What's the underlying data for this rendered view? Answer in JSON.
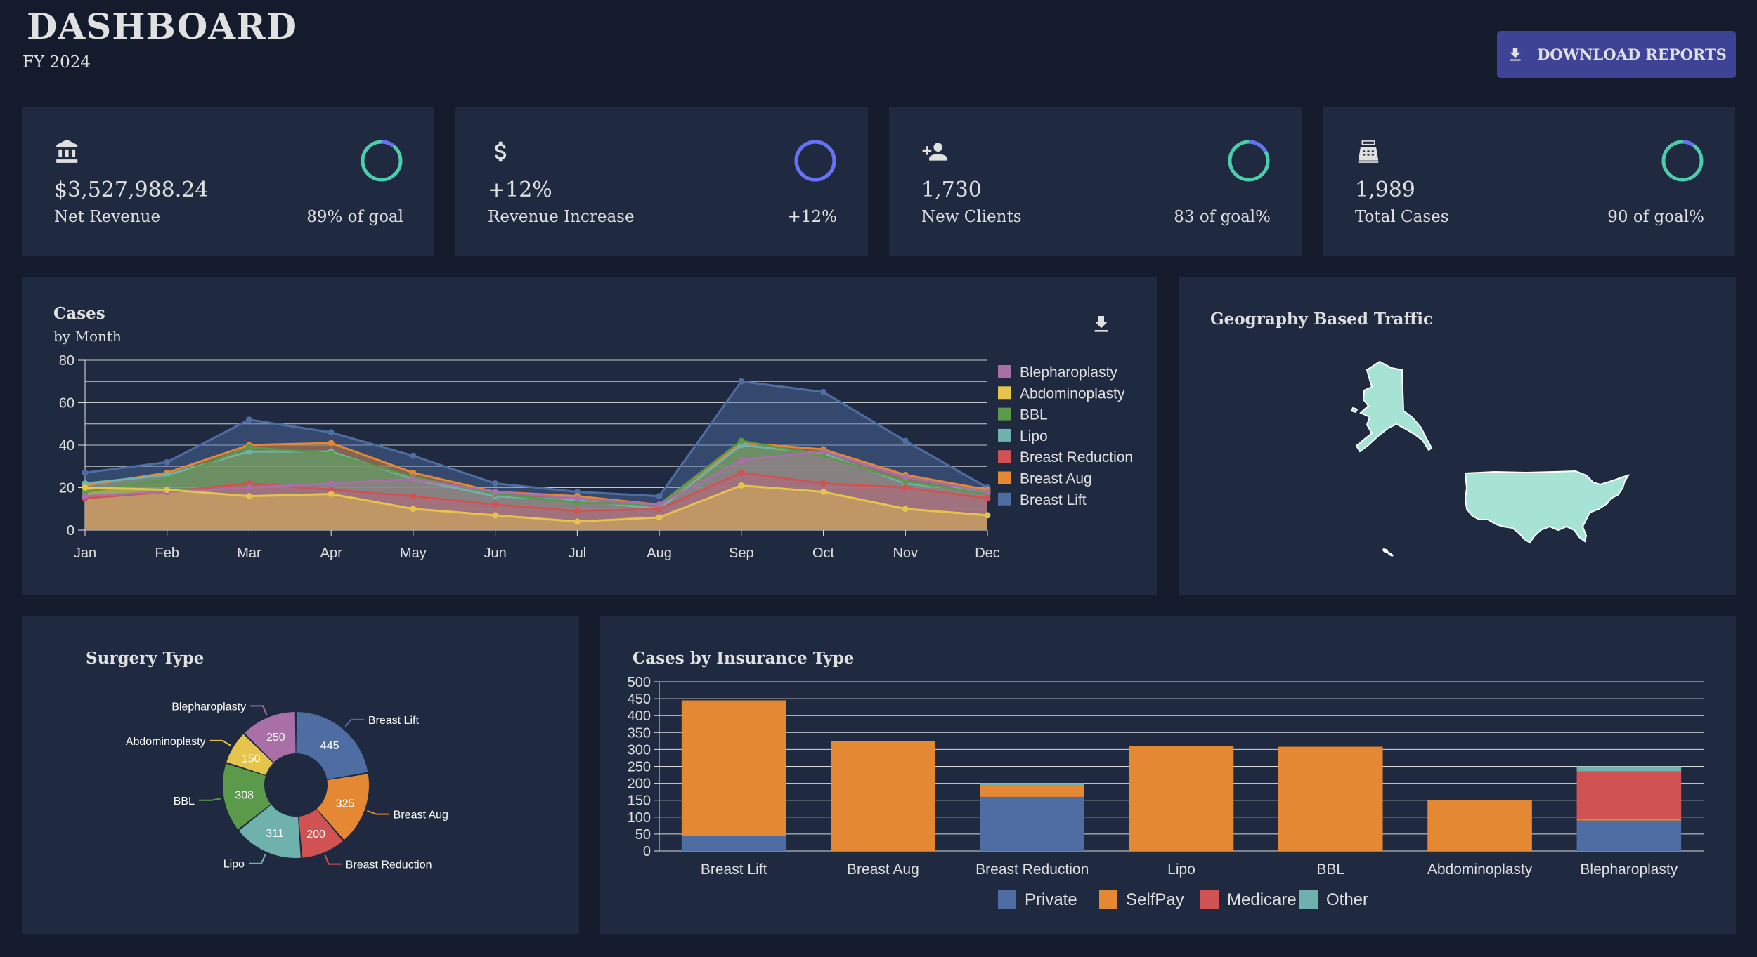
{
  "header": {
    "title": "DASHBOARD",
    "subtitle": "FY 2024",
    "download_label": "DOWNLOAD REPORTS"
  },
  "colors": {
    "background": "#141b2d",
    "panel": "#1f2a40",
    "accent_button": "#3e4396",
    "ring_green": "#4cceac",
    "ring_blue": "#6870fa"
  },
  "stats": [
    {
      "icon": "bank-icon",
      "value": "$3,527,988.24",
      "label": "Net Revenue",
      "pct_text": "89% of goal",
      "progress": 0.11
    },
    {
      "icon": "dollar-icon",
      "value": "+12%",
      "label": "Revenue Increase",
      "pct_text": "+12%",
      "progress": 1.0
    },
    {
      "icon": "add-person-icon",
      "value": "1,730",
      "label": "New Clients",
      "pct_text": "83 of goal%",
      "progress": 0.17
    },
    {
      "icon": "cash-register-icon",
      "value": "1,989",
      "label": "Total Cases",
      "pct_text": "90 of goal%",
      "progress": 0.1
    }
  ],
  "cases_panel": {
    "title": "Cases",
    "subtitle": "by Month"
  },
  "geo_panel": {
    "title": "Geography Based Traffic",
    "map_color": "#a6e3d5"
  },
  "surgery_panel": {
    "title": "Surgery Type"
  },
  "insurance_panel": {
    "title": "Cases by Insurance Type"
  },
  "chart_data": [
    {
      "type": "area",
      "title": "Cases",
      "subtitle": "by Month",
      "x": [
        "Jan",
        "Feb",
        "Mar",
        "Apr",
        "May",
        "Jun",
        "Jul",
        "Aug",
        "Sep",
        "Oct",
        "Nov",
        "Dec"
      ],
      "ylim": [
        0,
        80
      ],
      "yticks": [
        0,
        20,
        40,
        60,
        80
      ],
      "grid": true,
      "legend_position": "right",
      "series": [
        {
          "name": "Blepharoplasty",
          "color": "#a870a6",
          "values": [
            16,
            18,
            20,
            22,
            24,
            18,
            15,
            12,
            33,
            37,
            25,
            18
          ]
        },
        {
          "name": "Abdominoplasty",
          "color": "#e4c44a",
          "values": [
            20,
            19,
            16,
            17,
            10,
            7,
            4,
            6,
            21,
            18,
            10,
            7
          ]
        },
        {
          "name": "BBL",
          "color": "#5b9a4a",
          "values": [
            18,
            24,
            39,
            36,
            25,
            17,
            13,
            12,
            42,
            35,
            23,
            17
          ]
        },
        {
          "name": "Lipo",
          "color": "#6fb2ad",
          "values": [
            22,
            26,
            37,
            37,
            24,
            16,
            14,
            10,
            40,
            36,
            22,
            18
          ]
        },
        {
          "name": "Breast Reduction",
          "color": "#d05252",
          "values": [
            15,
            18,
            22,
            19,
            16,
            12,
            9,
            10,
            27,
            22,
            20,
            15
          ]
        },
        {
          "name": "Breast Aug",
          "color": "#e48833",
          "values": [
            21,
            27,
            40,
            41,
            27,
            18,
            16,
            12,
            41,
            38,
            26,
            19
          ]
        },
        {
          "name": "Breast Lift",
          "color": "#4e6ea3",
          "values": [
            27,
            32,
            52,
            46,
            35,
            22,
            18,
            16,
            70,
            65,
            42,
            20
          ]
        }
      ]
    },
    {
      "type": "pie",
      "title": "Surgery Type",
      "donut": true,
      "slices": [
        {
          "label": "Breast Lift",
          "value": 445,
          "color": "#4e6ea3"
        },
        {
          "label": "Breast Aug",
          "value": 325,
          "color": "#e48833"
        },
        {
          "label": "Breast Reduction",
          "value": 200,
          "color": "#d05252"
        },
        {
          "label": "Lipo",
          "value": 311,
          "color": "#6fb2ad"
        },
        {
          "label": "BBL",
          "value": 308,
          "color": "#5b9a4a"
        },
        {
          "label": "Abdominoplasty",
          "value": 150,
          "color": "#e4c44a"
        },
        {
          "label": "Blepharoplasty",
          "value": 250,
          "color": "#a870a6"
        }
      ]
    },
    {
      "type": "bar",
      "stacked": true,
      "title": "Cases by Insurance Type",
      "categories": [
        "Breast Lift",
        "Breast Aug",
        "Breast Reduction",
        "Lipo",
        "BBL",
        "Abdominoplasty",
        "Blepharoplasty"
      ],
      "ylim": [
        0,
        500
      ],
      "yticks": [
        0,
        50,
        100,
        150,
        200,
        250,
        300,
        350,
        400,
        450,
        500
      ],
      "grid": true,
      "legend_position": "bottom",
      "series": [
        {
          "name": "Private",
          "color": "#4e6ea3",
          "values": [
            45,
            0,
            160,
            0,
            0,
            0,
            90
          ]
        },
        {
          "name": "SelfPay",
          "color": "#e48833",
          "values": [
            400,
            325,
            35,
            311,
            308,
            150,
            5
          ]
        },
        {
          "name": "Medicare",
          "color": "#d05252",
          "values": [
            0,
            0,
            0,
            0,
            0,
            0,
            140
          ]
        },
        {
          "name": "Other",
          "color": "#6fb2ad",
          "values": [
            0,
            0,
            5,
            0,
            0,
            0,
            15
          ]
        }
      ]
    }
  ]
}
